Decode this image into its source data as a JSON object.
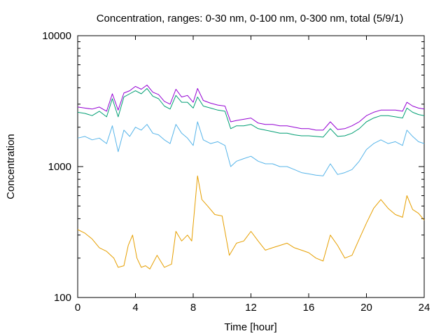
{
  "chart_data": {
    "type": "line",
    "title": "Concentration, ranges: 0-30 nm, 0-100 nm, 0-300 nm, total (5/9/1)",
    "xlabel": "Time [hour]",
    "ylabel": "Concentration",
    "xlim": [
      0,
      24
    ],
    "ylim": [
      100,
      10000
    ],
    "yscale": "log",
    "x_ticks": [
      0,
      4,
      8,
      12,
      16,
      20,
      24
    ],
    "x_tick_labels": [
      "0",
      "4",
      "8",
      "12",
      "16",
      "20",
      "24"
    ],
    "y_ticks": [
      100,
      1000,
      10000
    ],
    "y_tick_labels": [
      "100",
      "1000",
      "10000"
    ],
    "grid": false,
    "legend": "none",
    "series": [
      {
        "color": "#e69f00",
        "points": [
          [
            0,
            330
          ],
          [
            0.5,
            310
          ],
          [
            1,
            280
          ],
          [
            1.5,
            240
          ],
          [
            2,
            225
          ],
          [
            2.5,
            200
          ],
          [
            2.8,
            170
          ],
          [
            3.2,
            175
          ],
          [
            3.5,
            250
          ],
          [
            3.8,
            300
          ],
          [
            4.1,
            200
          ],
          [
            4.4,
            170
          ],
          [
            4.7,
            175
          ],
          [
            5.0,
            165
          ],
          [
            5.5,
            210
          ],
          [
            6.0,
            170
          ],
          [
            6.5,
            180
          ],
          [
            6.8,
            320
          ],
          [
            7.2,
            270
          ],
          [
            7.6,
            300
          ],
          [
            7.9,
            270
          ],
          [
            8.3,
            850
          ],
          [
            8.6,
            560
          ],
          [
            9.0,
            500
          ],
          [
            9.5,
            430
          ],
          [
            10.0,
            420
          ],
          [
            10.5,
            210
          ],
          [
            11.0,
            260
          ],
          [
            11.5,
            270
          ],
          [
            12.0,
            320
          ],
          [
            12.5,
            270
          ],
          [
            13.0,
            230
          ],
          [
            13.5,
            240
          ],
          [
            14.0,
            250
          ],
          [
            14.5,
            260
          ],
          [
            15.0,
            240
          ],
          [
            15.5,
            230
          ],
          [
            16.0,
            220
          ],
          [
            16.5,
            200
          ],
          [
            17.0,
            190
          ],
          [
            17.5,
            300
          ],
          [
            18.0,
            250
          ],
          [
            18.5,
            200
          ],
          [
            19.0,
            210
          ],
          [
            19.5,
            280
          ],
          [
            20.0,
            370
          ],
          [
            20.5,
            480
          ],
          [
            21.0,
            560
          ],
          [
            21.5,
            480
          ],
          [
            22.0,
            430
          ],
          [
            22.5,
            410
          ],
          [
            22.8,
            600
          ],
          [
            23.2,
            470
          ],
          [
            23.6,
            440
          ],
          [
            24,
            390
          ]
        ]
      },
      {
        "color": "#56b4e9",
        "points": [
          [
            0,
            1650
          ],
          [
            0.5,
            1700
          ],
          [
            1,
            1600
          ],
          [
            1.5,
            1650
          ],
          [
            2,
            1500
          ],
          [
            2.4,
            2050
          ],
          [
            2.8,
            1300
          ],
          [
            3.2,
            1900
          ],
          [
            3.6,
            1700
          ],
          [
            4.0,
            2000
          ],
          [
            4.4,
            1900
          ],
          [
            4.8,
            2100
          ],
          [
            5.2,
            1800
          ],
          [
            5.6,
            1750
          ],
          [
            6.0,
            1600
          ],
          [
            6.4,
            1500
          ],
          [
            6.8,
            2100
          ],
          [
            7.2,
            1800
          ],
          [
            7.6,
            1650
          ],
          [
            8.0,
            1450
          ],
          [
            8.3,
            2200
          ],
          [
            8.7,
            1600
          ],
          [
            9.2,
            1500
          ],
          [
            9.7,
            1550
          ],
          [
            10.2,
            1450
          ],
          [
            10.6,
            1000
          ],
          [
            11.0,
            1100
          ],
          [
            11.5,
            1150
          ],
          [
            12.0,
            1200
          ],
          [
            12.5,
            1100
          ],
          [
            13.0,
            1050
          ],
          [
            13.5,
            1050
          ],
          [
            14.0,
            1000
          ],
          [
            14.5,
            1000
          ],
          [
            15.0,
            950
          ],
          [
            15.5,
            900
          ],
          [
            16.0,
            880
          ],
          [
            16.5,
            860
          ],
          [
            17.0,
            850
          ],
          [
            17.5,
            1050
          ],
          [
            18.0,
            870
          ],
          [
            18.5,
            900
          ],
          [
            19.0,
            950
          ],
          [
            19.5,
            1100
          ],
          [
            20.0,
            1350
          ],
          [
            20.5,
            1500
          ],
          [
            21.0,
            1600
          ],
          [
            21.5,
            1500
          ],
          [
            22.0,
            1550
          ],
          [
            22.5,
            1450
          ],
          [
            22.8,
            1900
          ],
          [
            23.2,
            1700
          ],
          [
            23.6,
            1550
          ],
          [
            24,
            1500
          ]
        ]
      },
      {
        "color": "#009e73",
        "points": [
          [
            0,
            2600
          ],
          [
            0.5,
            2550
          ],
          [
            1,
            2450
          ],
          [
            1.5,
            2650
          ],
          [
            2,
            2400
          ],
          [
            2.4,
            3300
          ],
          [
            2.8,
            2400
          ],
          [
            3.2,
            3400
          ],
          [
            3.6,
            3600
          ],
          [
            4.0,
            3800
          ],
          [
            4.4,
            3600
          ],
          [
            4.8,
            3950
          ],
          [
            5.2,
            3450
          ],
          [
            5.6,
            3300
          ],
          [
            6.0,
            2900
          ],
          [
            6.4,
            2750
          ],
          [
            6.8,
            3500
          ],
          [
            7.2,
            3100
          ],
          [
            7.6,
            3100
          ],
          [
            8.0,
            2800
          ],
          [
            8.3,
            3400
          ],
          [
            8.7,
            2900
          ],
          [
            9.2,
            2800
          ],
          [
            9.7,
            2700
          ],
          [
            10.2,
            2650
          ],
          [
            10.6,
            1950
          ],
          [
            11.0,
            2050
          ],
          [
            11.5,
            2050
          ],
          [
            12.0,
            2100
          ],
          [
            12.5,
            1950
          ],
          [
            13.0,
            1900
          ],
          [
            13.5,
            1850
          ],
          [
            14.0,
            1800
          ],
          [
            14.5,
            1800
          ],
          [
            15.0,
            1750
          ],
          [
            15.5,
            1720
          ],
          [
            16.0,
            1720
          ],
          [
            16.5,
            1700
          ],
          [
            17.0,
            1680
          ],
          [
            17.5,
            1950
          ],
          [
            18.0,
            1700
          ],
          [
            18.5,
            1720
          ],
          [
            19.0,
            1800
          ],
          [
            19.5,
            1950
          ],
          [
            20.0,
            2200
          ],
          [
            20.5,
            2350
          ],
          [
            21.0,
            2450
          ],
          [
            21.5,
            2450
          ],
          [
            22.0,
            2400
          ],
          [
            22.5,
            2350
          ],
          [
            22.8,
            2800
          ],
          [
            23.2,
            2600
          ],
          [
            23.6,
            2500
          ],
          [
            24,
            2450
          ]
        ]
      },
      {
        "color": "#9400d3",
        "points": [
          [
            0,
            2850
          ],
          [
            0.5,
            2800
          ],
          [
            1,
            2750
          ],
          [
            1.5,
            2850
          ],
          [
            2,
            2650
          ],
          [
            2.4,
            3600
          ],
          [
            2.8,
            2700
          ],
          [
            3.2,
            3650
          ],
          [
            3.6,
            3800
          ],
          [
            4.0,
            4100
          ],
          [
            4.4,
            3900
          ],
          [
            4.8,
            4200
          ],
          [
            5.2,
            3700
          ],
          [
            5.6,
            3550
          ],
          [
            6.0,
            3150
          ],
          [
            6.4,
            3000
          ],
          [
            6.8,
            3900
          ],
          [
            7.2,
            3400
          ],
          [
            7.6,
            3500
          ],
          [
            8.0,
            3100
          ],
          [
            8.3,
            3950
          ],
          [
            8.7,
            3200
          ],
          [
            9.2,
            3050
          ],
          [
            9.7,
            2950
          ],
          [
            10.2,
            2900
          ],
          [
            10.6,
            2200
          ],
          [
            11.0,
            2250
          ],
          [
            11.5,
            2300
          ],
          [
            12.0,
            2350
          ],
          [
            12.5,
            2150
          ],
          [
            13.0,
            2100
          ],
          [
            13.5,
            2100
          ],
          [
            14.0,
            2050
          ],
          [
            14.5,
            2050
          ],
          [
            15.0,
            2000
          ],
          [
            15.5,
            1950
          ],
          [
            16.0,
            1950
          ],
          [
            16.5,
            1900
          ],
          [
            17.0,
            1900
          ],
          [
            17.5,
            2200
          ],
          [
            18.0,
            1920
          ],
          [
            18.5,
            1950
          ],
          [
            19.0,
            2050
          ],
          [
            19.5,
            2200
          ],
          [
            20.0,
            2450
          ],
          [
            20.5,
            2600
          ],
          [
            21.0,
            2700
          ],
          [
            21.5,
            2700
          ],
          [
            22.0,
            2700
          ],
          [
            22.5,
            2650
          ],
          [
            22.8,
            3100
          ],
          [
            23.2,
            2900
          ],
          [
            23.6,
            2800
          ],
          [
            24,
            2750
          ]
        ]
      }
    ]
  }
}
